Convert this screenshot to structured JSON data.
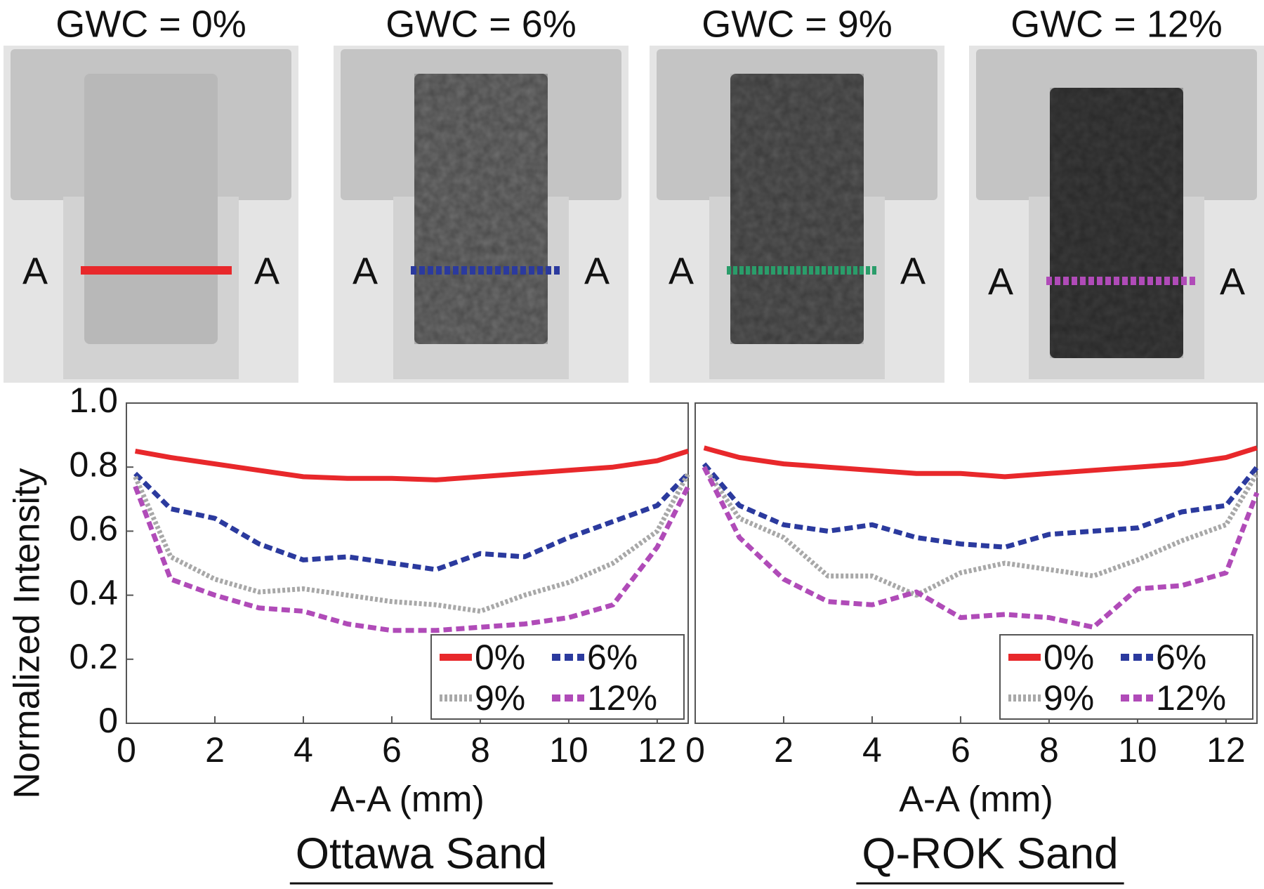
{
  "panels": [
    {
      "title": "GWC = 0%",
      "marker_left": "A",
      "marker_right": "A"
    },
    {
      "title": "GWC = 6%",
      "marker_left": "A",
      "marker_right": "A"
    },
    {
      "title": "GWC = 9%",
      "marker_left": "A",
      "marker_right": "A"
    },
    {
      "title": "GWC = 12%",
      "marker_left": "A",
      "marker_right": "A"
    }
  ],
  "chart_data": [
    {
      "type": "line",
      "title": "Ottawa Sand",
      "xlabel": "A-A (mm)",
      "ylabel": "Normalized Intensity",
      "x": [
        0.2,
        1,
        2,
        3,
        4,
        5,
        6,
        7,
        8,
        9,
        10,
        11,
        12,
        12.7
      ],
      "series": [
        {
          "name": "0%",
          "color": "#e8282b",
          "style": "solid",
          "values": [
            0.85,
            0.83,
            0.81,
            0.79,
            0.77,
            0.765,
            0.765,
            0.76,
            0.77,
            0.78,
            0.79,
            0.8,
            0.82,
            0.85
          ]
        },
        {
          "name": "6%",
          "color": "#2b3a9e",
          "style": "dashed",
          "values": [
            0.78,
            0.67,
            0.64,
            0.56,
            0.51,
            0.52,
            0.5,
            0.48,
            0.53,
            0.52,
            0.58,
            0.63,
            0.68,
            0.78
          ]
        },
        {
          "name": "9%",
          "color": "#a8a8a8",
          "style": "dotted",
          "values": [
            0.77,
            0.52,
            0.45,
            0.41,
            0.42,
            0.4,
            0.38,
            0.37,
            0.35,
            0.4,
            0.44,
            0.5,
            0.6,
            0.78
          ]
        },
        {
          "name": "12%",
          "color": "#b04bb8",
          "style": "dashed",
          "values": [
            0.74,
            0.45,
            0.4,
            0.36,
            0.35,
            0.31,
            0.29,
            0.29,
            0.3,
            0.31,
            0.33,
            0.37,
            0.55,
            0.74
          ]
        }
      ],
      "xlim": [
        0,
        12.7
      ],
      "xticks": [
        0,
        2,
        4,
        6,
        8,
        10,
        12
      ],
      "ylim": [
        0,
        1
      ],
      "yticks": [
        0,
        0.2,
        0.4,
        0.6,
        0.8,
        {
          "value": 1,
          "label": "1.0"
        }
      ],
      "legend": "lower right"
    },
    {
      "type": "line",
      "title": "Q-ROK Sand",
      "xlabel": "A-A (mm)",
      "x": [
        0.2,
        1,
        2,
        3,
        4,
        5,
        6,
        7,
        8,
        9,
        10,
        11,
        12,
        12.7
      ],
      "series": [
        {
          "name": "0%",
          "color": "#e8282b",
          "style": "solid",
          "values": [
            0.86,
            0.83,
            0.81,
            0.8,
            0.79,
            0.78,
            0.78,
            0.77,
            0.78,
            0.79,
            0.8,
            0.81,
            0.83,
            0.86
          ]
        },
        {
          "name": "6%",
          "color": "#2b3a9e",
          "style": "dashed",
          "values": [
            0.81,
            0.68,
            0.62,
            0.6,
            0.62,
            0.58,
            0.56,
            0.55,
            0.59,
            0.6,
            0.61,
            0.66,
            0.68,
            0.8
          ]
        },
        {
          "name": "9%",
          "color": "#a8a8a8",
          "style": "dotted",
          "values": [
            0.8,
            0.64,
            0.58,
            0.46,
            0.46,
            0.4,
            0.47,
            0.5,
            0.48,
            0.46,
            0.51,
            0.57,
            0.62,
            0.78
          ]
        },
        {
          "name": "12%",
          "color": "#b04bb8",
          "style": "dashed",
          "values": [
            0.8,
            0.58,
            0.45,
            0.38,
            0.37,
            0.41,
            0.33,
            0.34,
            0.33,
            0.3,
            0.42,
            0.43,
            0.47,
            0.72
          ]
        }
      ],
      "xlim": [
        0,
        12.7
      ],
      "xticks": [
        0,
        2,
        4,
        6,
        8,
        10,
        12
      ],
      "ylim": [
        0,
        1
      ],
      "legend": "lower right"
    }
  ]
}
